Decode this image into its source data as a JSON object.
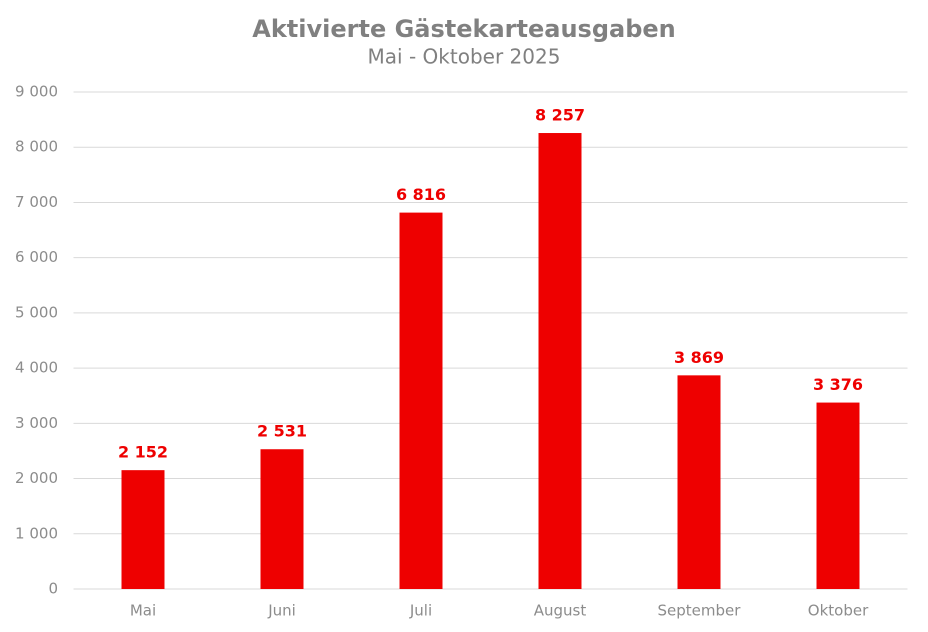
{
  "chart_data": {
    "type": "bar",
    "title": "Aktivierte Gästekarteausgaben",
    "subtitle": "Mai - Oktober 2025",
    "categories": [
      "Mai",
      "Juni",
      "Juli",
      "August",
      "September",
      "Oktober"
    ],
    "values": [
      2152,
      2531,
      6816,
      8257,
      3869,
      3376
    ],
    "value_labels": [
      "2 152",
      "2 531",
      "6 816",
      "8 257",
      "3 869",
      "3 376"
    ],
    "color": "#ee0000",
    "ylim": [
      0,
      9000
    ],
    "yticks": [
      0,
      {
        "value": 1000,
        "label": "1 000"
      },
      {
        "value": 2000,
        "label": "2 000"
      },
      {
        "value": 3000,
        "label": "3 000"
      },
      {
        "value": 4000,
        "label": "4 000"
      },
      {
        "value": 5000,
        "label": "5 000"
      },
      {
        "value": 6000,
        "label": "6 000"
      },
      {
        "value": 7000,
        "label": "7 000"
      },
      {
        "value": 8000,
        "label": "8 000"
      },
      {
        "value": 9000,
        "label": "9 000"
      }
    ],
    "grid": true
  }
}
